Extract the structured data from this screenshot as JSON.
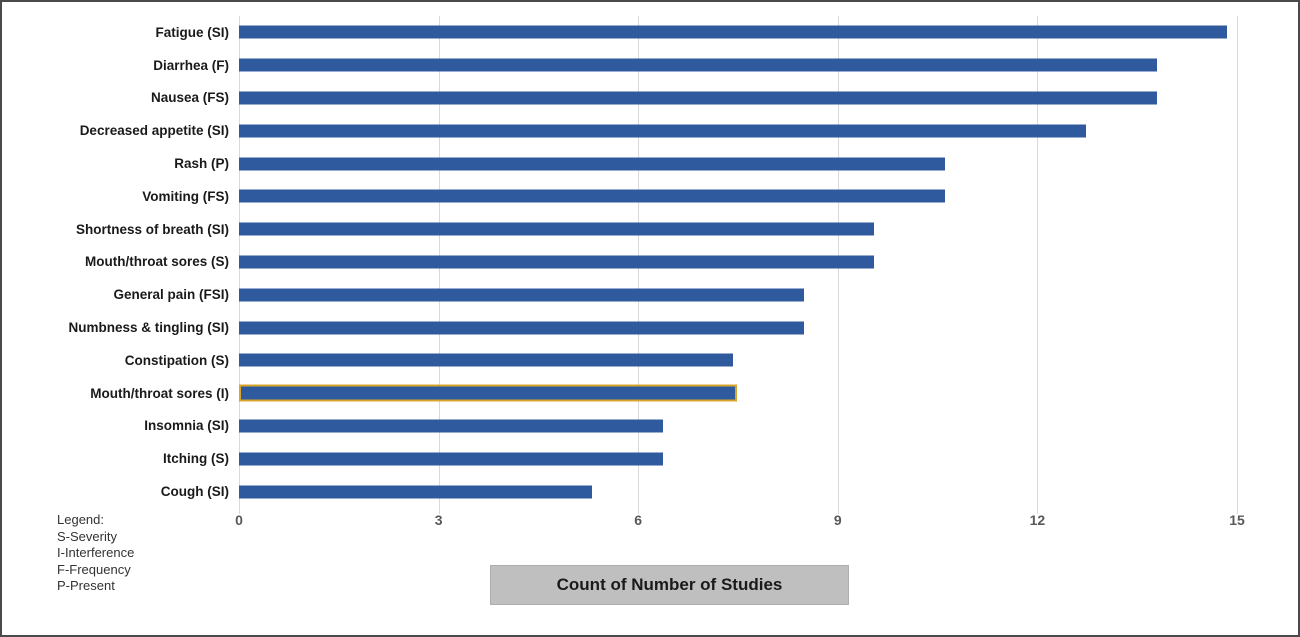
{
  "chart_data": {
    "type": "bar",
    "orientation": "horizontal",
    "title": "",
    "xlabel": "Count of Number of Studies",
    "ylabel": "",
    "categories": [
      "Fatigue (SI)",
      "Diarrhea (F)",
      "Nausea (FS)",
      "Decreased appetite (SI)",
      "Rash (P)",
      "Vomiting (FS)",
      "Shortness of breath (SI)",
      "Mouth/throat sores (S)",
      "General pain (FSI)",
      "Numbness & tingling (SI)",
      "Constipation (S)",
      "Mouth/throat sores (I)",
      "Insomnia (SI)",
      "Itching (S)",
      "Cough (SI)"
    ],
    "values": [
      14,
      13,
      13,
      12,
      10,
      10,
      9,
      9,
      8,
      8,
      7,
      7,
      6,
      6,
      5
    ],
    "highlighted_category": "Mouth/throat sores (I)",
    "highlighted_index": 11,
    "xlim": [
      0,
      15
    ],
    "x_ticks": [
      "0",
      "3",
      "6",
      "9",
      "12",
      "15"
    ],
    "grid": "vertical",
    "legend_position": "none",
    "bar_color": "#2f5a9e",
    "highlight_border_color": "#d9a62b",
    "gridline_color": "#d9d9d9"
  },
  "legend_note": {
    "title": "Legend:",
    "entries": [
      "S-Severity",
      "I-Interference",
      "F-Frequency",
      "P-Present"
    ]
  }
}
